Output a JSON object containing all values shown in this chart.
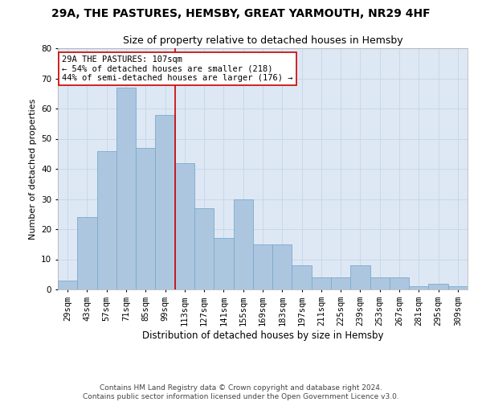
{
  "title": "29A, THE PASTURES, HEMSBY, GREAT YARMOUTH, NR29 4HF",
  "subtitle": "Size of property relative to detached houses in Hemsby",
  "xlabel": "Distribution of detached houses by size in Hemsby",
  "ylabel": "Number of detached properties",
  "bins": [
    "29sqm",
    "43sqm",
    "57sqm",
    "71sqm",
    "85sqm",
    "99sqm",
    "113sqm",
    "127sqm",
    "141sqm",
    "155sqm",
    "169sqm",
    "183sqm",
    "197sqm",
    "211sqm",
    "225sqm",
    "239sqm",
    "253sqm",
    "267sqm",
    "281sqm",
    "295sqm",
    "309sqm"
  ],
  "values": [
    3,
    24,
    46,
    67,
    47,
    58,
    42,
    27,
    17,
    30,
    15,
    15,
    8,
    4,
    4,
    8,
    4,
    4,
    1,
    2,
    1
  ],
  "bar_color": "#adc6e0",
  "bar_edge_color": "#7aaacb",
  "vline_x": 5.5,
  "vline_color": "#cc0000",
  "annotation_text": "29A THE PASTURES: 107sqm\n← 54% of detached houses are smaller (218)\n44% of semi-detached houses are larger (176) →",
  "annotation_box_color": "#ffffff",
  "annotation_box_edge": "#cc0000",
  "footer_text": "Contains HM Land Registry data © Crown copyright and database right 2024.\nContains public sector information licensed under the Open Government Licence v3.0.",
  "ylim": [
    0,
    80
  ],
  "yticks": [
    0,
    10,
    20,
    30,
    40,
    50,
    60,
    70,
    80
  ],
  "grid_color": "#c8d8e8",
  "bg_color": "#dde8f4",
  "title_fontsize": 10,
  "subtitle_fontsize": 9,
  "xlabel_fontsize": 8.5,
  "ylabel_fontsize": 8,
  "tick_fontsize": 7.5,
  "annotation_fontsize": 7.5,
  "footer_fontsize": 6.5
}
